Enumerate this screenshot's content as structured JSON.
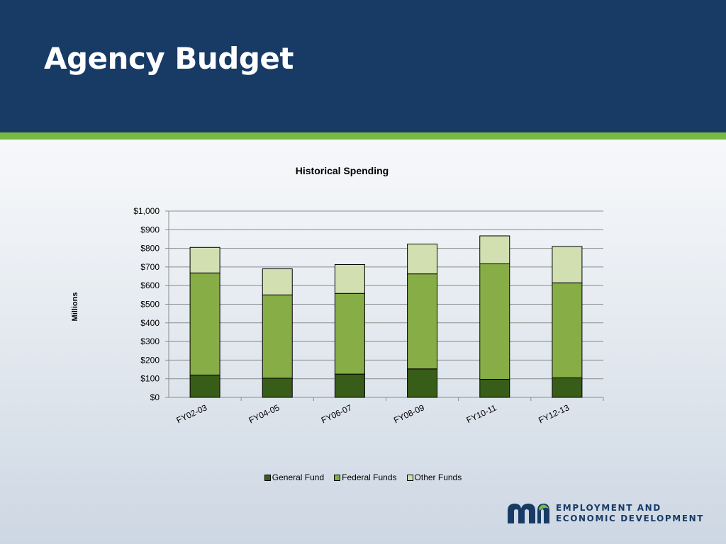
{
  "header": {
    "title": "Agency Budget",
    "background_color": "#183b66",
    "stripe_color": "#78b943"
  },
  "chart_data": {
    "type": "bar",
    "stacked": true,
    "title": "Historical Spending",
    "xlabel": "",
    "ylabel": "Millions",
    "ylim": [
      0,
      1000
    ],
    "yticks": [
      0,
      100,
      200,
      300,
      400,
      500,
      600,
      700,
      800,
      900,
      1000
    ],
    "ytick_labels": [
      "$0",
      "$100",
      "$200",
      "$300",
      "$400",
      "$500",
      "$600",
      "$700",
      "$800",
      "$900",
      "$1,000"
    ],
    "grid": true,
    "legend_position": "bottom",
    "categories": [
      "FY02-03",
      "FY04-05",
      "FY06-07",
      "FY08-09",
      "FY10-11",
      "FY12-13"
    ],
    "series": [
      {
        "name": "General Fund",
        "color": "#385d19",
        "values": [
          120,
          103,
          125,
          153,
          97,
          105
        ]
      },
      {
        "name": "Federal Funds",
        "color": "#87ad47",
        "values": [
          548,
          447,
          433,
          510,
          620,
          510
        ]
      },
      {
        "name": "Other Funds",
        "color": "#d2e0b1",
        "values": [
          137,
          140,
          155,
          160,
          150,
          195
        ]
      }
    ]
  },
  "logo": {
    "line1": "EMPLOYMENT AND",
    "line2": "ECONOMIC DEVELOPMENT",
    "mark_color": "#183b66",
    "accent_color": "#78b943"
  }
}
